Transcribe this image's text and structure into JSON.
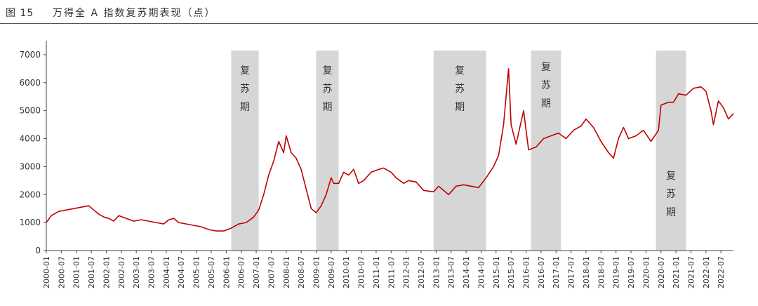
{
  "figure": {
    "number": "图 15",
    "title": "万得全 A 指数复苏期表现（点）"
  },
  "colors": {
    "line": "#c00000",
    "shade": "#d6d6d6",
    "axis": "#444444",
    "text": "#333333"
  },
  "chart_data": {
    "type": "line",
    "title": "万得全 A 指数复苏期表现（点）",
    "xlabel": "",
    "ylabel": "",
    "ylim": [
      0,
      7500
    ],
    "yticks": [
      0,
      1000,
      2000,
      3000,
      4000,
      5000,
      6000,
      7000
    ],
    "grid": false,
    "legend": "none",
    "xlim": [
      "2000-01",
      "2022-12"
    ],
    "xticks": [
      "2000-01",
      "2000-07",
      "2001-01",
      "2001-07",
      "2002-01",
      "2002-07",
      "2003-01",
      "2003-07",
      "2004-01",
      "2004-07",
      "2005-01",
      "2005-07",
      "2006-01",
      "2006-07",
      "2007-01",
      "2007-07",
      "2008-01",
      "2008-07",
      "2009-01",
      "2009-07",
      "2010-01",
      "2010-07",
      "2011-01",
      "2011-07",
      "2012-01",
      "2012-07",
      "2013-01",
      "2013-07",
      "2014-01",
      "2014-07",
      "2015-01",
      "2015-07",
      "2016-01",
      "2016-07",
      "2017-01",
      "2017-07",
      "2018-01",
      "2018-07",
      "2019-01",
      "2019-07",
      "2020-01",
      "2020-07",
      "2021-01",
      "2021-07",
      "2022-01",
      "2022-07"
    ],
    "shaded_periods": [
      {
        "start": "2006-03",
        "end": "2007-02",
        "label": "复苏期"
      },
      {
        "start": "2009-01",
        "end": "2009-10",
        "label": "复苏期"
      },
      {
        "start": "2012-12",
        "end": "2014-09",
        "label": "复苏期"
      },
      {
        "start": "2016-03",
        "end": "2017-03",
        "label": "复苏期"
      },
      {
        "start": "2020-05",
        "end": "2021-05",
        "label": "复苏期"
      }
    ],
    "series": [
      {
        "points": [
          [
            "2000-01",
            1000
          ],
          [
            "2000-03",
            1250
          ],
          [
            "2000-06",
            1400
          ],
          [
            "2000-09",
            1450
          ],
          [
            "2000-12",
            1500
          ],
          [
            "2001-03",
            1550
          ],
          [
            "2001-06",
            1600
          ],
          [
            "2001-08",
            1450
          ],
          [
            "2001-10",
            1300
          ],
          [
            "2001-12",
            1200
          ],
          [
            "2002-02",
            1150
          ],
          [
            "2002-04",
            1050
          ],
          [
            "2002-06",
            1250
          ],
          [
            "2002-09",
            1150
          ],
          [
            "2002-12",
            1050
          ],
          [
            "2003-03",
            1100
          ],
          [
            "2003-06",
            1050
          ],
          [
            "2003-09",
            1000
          ],
          [
            "2003-12",
            950
          ],
          [
            "2004-02",
            1100
          ],
          [
            "2004-04",
            1150
          ],
          [
            "2004-06",
            1000
          ],
          [
            "2004-09",
            950
          ],
          [
            "2004-12",
            900
          ],
          [
            "2005-03",
            850
          ],
          [
            "2005-06",
            750
          ],
          [
            "2005-09",
            700
          ],
          [
            "2005-12",
            700
          ],
          [
            "2006-03",
            800
          ],
          [
            "2006-06",
            950
          ],
          [
            "2006-09",
            1000
          ],
          [
            "2006-12",
            1200
          ],
          [
            "2007-02",
            1450
          ],
          [
            "2007-04",
            2000
          ],
          [
            "2007-06",
            2700
          ],
          [
            "2007-08",
            3200
          ],
          [
            "2007-10",
            3900
          ],
          [
            "2007-12",
            3500
          ],
          [
            "2008-01",
            4100
          ],
          [
            "2008-03",
            3500
          ],
          [
            "2008-05",
            3300
          ],
          [
            "2008-07",
            2900
          ],
          [
            "2008-09",
            2200
          ],
          [
            "2008-11",
            1500
          ],
          [
            "2009-01",
            1350
          ],
          [
            "2009-03",
            1600
          ],
          [
            "2009-05",
            2000
          ],
          [
            "2009-07",
            2600
          ],
          [
            "2009-08",
            2400
          ],
          [
            "2009-10",
            2400
          ],
          [
            "2009-12",
            2800
          ],
          [
            "2010-02",
            2700
          ],
          [
            "2010-04",
            2900
          ],
          [
            "2010-06",
            2400
          ],
          [
            "2010-08",
            2500
          ],
          [
            "2010-11",
            2800
          ],
          [
            "2011-02",
            2900
          ],
          [
            "2011-04",
            2950
          ],
          [
            "2011-07",
            2800
          ],
          [
            "2011-09",
            2600
          ],
          [
            "2011-12",
            2400
          ],
          [
            "2012-02",
            2500
          ],
          [
            "2012-05",
            2450
          ],
          [
            "2012-08",
            2150
          ],
          [
            "2012-12",
            2100
          ],
          [
            "2013-02",
            2300
          ],
          [
            "2013-06",
            2000
          ],
          [
            "2013-09",
            2300
          ],
          [
            "2013-12",
            2350
          ],
          [
            "2014-03",
            2300
          ],
          [
            "2014-06",
            2250
          ],
          [
            "2014-09",
            2600
          ],
          [
            "2014-12",
            3000
          ],
          [
            "2015-02",
            3400
          ],
          [
            "2015-04",
            4500
          ],
          [
            "2015-06",
            6500
          ],
          [
            "2015-07",
            4500
          ],
          [
            "2015-09",
            3800
          ],
          [
            "2015-12",
            5000
          ],
          [
            "2016-02",
            3600
          ],
          [
            "2016-05",
            3700
          ],
          [
            "2016-08",
            4000
          ],
          [
            "2016-11",
            4100
          ],
          [
            "2017-02",
            4200
          ],
          [
            "2017-05",
            4000
          ],
          [
            "2017-08",
            4300
          ],
          [
            "2017-11",
            4450
          ],
          [
            "2018-01",
            4700
          ],
          [
            "2018-04",
            4400
          ],
          [
            "2018-07",
            3900
          ],
          [
            "2018-10",
            3500
          ],
          [
            "2018-12",
            3300
          ],
          [
            "2019-02",
            4000
          ],
          [
            "2019-04",
            4400
          ],
          [
            "2019-06",
            4000
          ],
          [
            "2019-09",
            4100
          ],
          [
            "2019-12",
            4300
          ],
          [
            "2020-03",
            3900
          ],
          [
            "2020-06",
            4300
          ],
          [
            "2020-07",
            5200
          ],
          [
            "2020-10",
            5300
          ],
          [
            "2020-12",
            5300
          ],
          [
            "2021-02",
            5600
          ],
          [
            "2021-05",
            5550
          ],
          [
            "2021-08",
            5800
          ],
          [
            "2021-11",
            5850
          ],
          [
            "2022-01",
            5700
          ],
          [
            "2022-03",
            5000
          ],
          [
            "2022-04",
            4500
          ],
          [
            "2022-06",
            5350
          ],
          [
            "2022-08",
            5100
          ],
          [
            "2022-10",
            4700
          ],
          [
            "2022-12",
            4900
          ]
        ]
      }
    ]
  }
}
